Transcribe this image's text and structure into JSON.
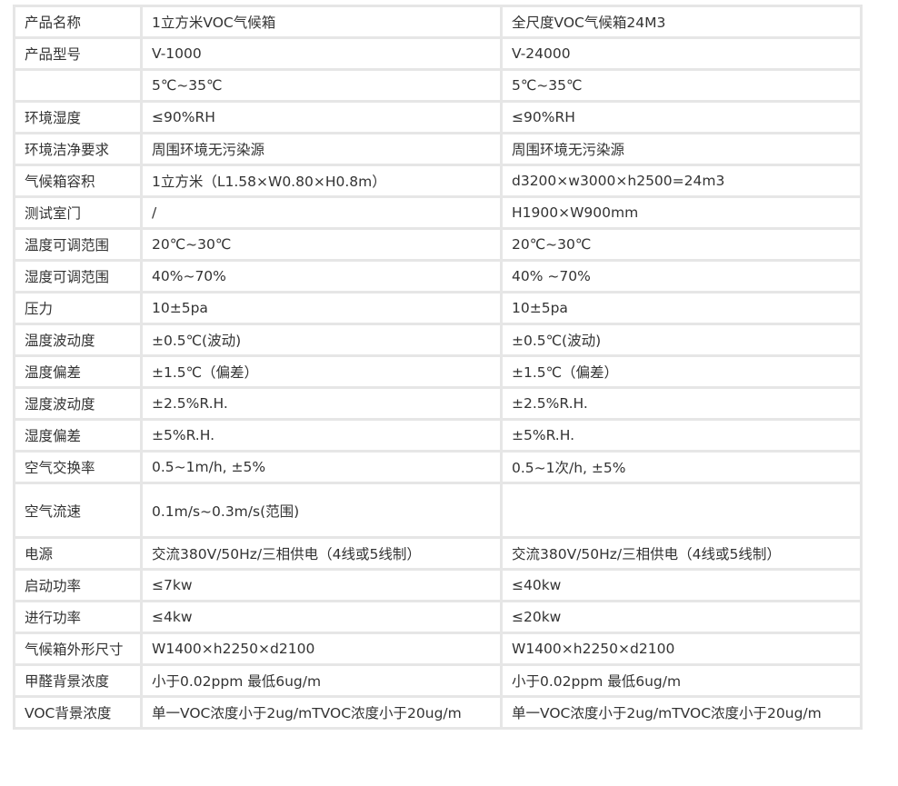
{
  "rows": [
    [
      "产品名称",
      "1立方米VOC气候箱",
      "全尺度VOC气候箱24M3"
    ],
    [
      "产品型号",
      "V-1000",
      "V-24000"
    ],
    [
      "",
      "5℃~35℃",
      "5℃~35℃"
    ],
    [
      "环境湿度",
      "≤90%RH",
      "≤90%RH"
    ],
    [
      "环境洁净要求",
      "周围环境无污染源",
      "周围环境无污染源"
    ],
    [
      "气候箱容积",
      "1立方米（L1.58×W0.80×H0.8m）",
      "d3200×w3000×h2500=24m3"
    ],
    [
      "测试室门",
      "/",
      "H1900×W900mm"
    ],
    [
      "温度可调范围",
      "20℃~30℃",
      "20℃~30℃"
    ],
    [
      "湿度可调范围",
      "40%~70%",
      "40% ~70%"
    ],
    [
      "压力",
      "10±5pa",
      "10±5pa"
    ],
    [
      "温度波动度",
      "±0.5℃(波动)",
      "±0.5℃(波动)"
    ],
    [
      "温度偏差",
      "±1.5℃（偏差）",
      "±1.5℃（偏差）"
    ],
    [
      "湿度波动度",
      "±2.5%R.H.",
      "±2.5%R.H."
    ],
    [
      "湿度偏差",
      "±5%R.H.",
      "±5%R.H."
    ],
    [
      "空气交换率",
      "0.5~1m/h, ±5%",
      "0.5~1次/h, ±5%"
    ],
    [
      "空气流速",
      "0.1m/s~0.3m/s(范围)",
      ""
    ],
    [
      "电源",
      "交流380V/50Hz/三相供电（4线或5线制）",
      "交流380V/50Hz/三相供电（4线或5线制）"
    ],
    [
      "启动功率",
      "≤7kw",
      "≤40kw"
    ],
    [
      "进行功率",
      "≤4kw",
      "≤20kw"
    ],
    [
      "气候箱外形尺寸",
      "W1400×h2250×d2100",
      "W1400×h2250×d2100"
    ],
    [
      "甲醛背景浓度",
      "小于0.02ppm 最低6ug/m",
      "小于0.02ppm 最低6ug/m"
    ],
    [
      "VOC背景浓度",
      "单一VOC浓度小于2ug/mTVOC浓度小于20ug/m",
      "单一VOC浓度小于2ug/mTVOC浓度小于20ug/m"
    ]
  ]
}
